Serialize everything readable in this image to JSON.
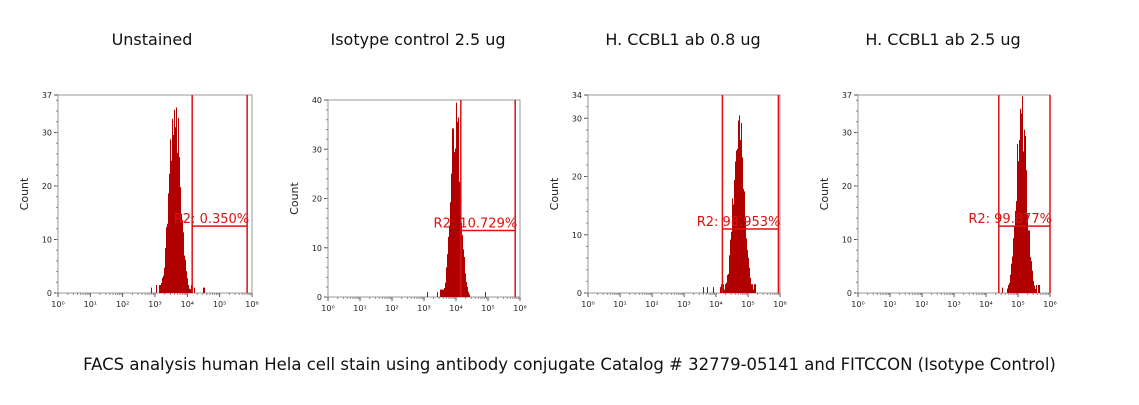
{
  "caption": "FACS analysis human Hela cell stain using antibody conjugate Catalog # 32779-05141 and FITCCON (Isotype Control)",
  "colors": {
    "histogram": "#b00000",
    "gate": "#dd1111",
    "axis": "#999999"
  },
  "chart_data": [
    {
      "type": "histogram",
      "title": "Unstained",
      "ylabel": "Count",
      "xscale": "log",
      "xlim": [
        0,
        6
      ],
      "ylim": [
        0,
        37
      ],
      "yticks": [
        0,
        10,
        20,
        30,
        37
      ],
      "xticks": [
        "10⁰",
        "10¹",
        "10²",
        "10³",
        "10⁴",
        "10⁵",
        "10⁶"
      ],
      "peak_log": 3.6,
      "peak_count": 37,
      "spread": 0.17,
      "gate": {
        "label": "R2: 0.350%",
        "from_log": 4.15,
        "to_log": 5.85,
        "y": 12.5
      }
    },
    {
      "type": "histogram",
      "title": "Isotype control 2.5 ug",
      "ylabel": "Count",
      "xscale": "log",
      "xlim": [
        0,
        6
      ],
      "ylim": [
        0,
        40
      ],
      "yticks": [
        0,
        10,
        20,
        30,
        40
      ],
      "xticks": [
        "10⁰",
        "10¹",
        "10²",
        "10³",
        "10⁴",
        "10⁵",
        "10⁶"
      ],
      "peak_log": 3.98,
      "peak_count": 40,
      "spread": 0.15,
      "gate": {
        "label": "R2: 10.729%",
        "from_log": 4.15,
        "to_log": 5.85,
        "y": 13.5
      }
    },
    {
      "type": "histogram",
      "title": "H. CCBL1 ab 0.8 ug",
      "ylabel": "Count",
      "xscale": "log",
      "xlim": [
        0,
        6
      ],
      "ylim": [
        0,
        34
      ],
      "yticks": [
        0,
        10,
        20,
        30,
        34
      ],
      "xticks": [
        "10⁰",
        "10¹",
        "10²",
        "10³",
        "10⁴",
        "10⁵",
        "10⁶"
      ],
      "peak_log": 4.7,
      "peak_count": 34,
      "spread": 0.16,
      "gate": {
        "label": "R2: 98.953%",
        "from_log": 4.2,
        "to_log": 5.95,
        "y": 11
      }
    },
    {
      "type": "histogram",
      "title": "H. CCBL1 ab 2.5 ug",
      "ylabel": "Count",
      "xscale": "log",
      "xlim": [
        0,
        6
      ],
      "ylim": [
        0,
        37
      ],
      "yticks": [
        0,
        10,
        20,
        30,
        37
      ],
      "xticks": [
        "10⁰",
        "10¹",
        "10²",
        "10³",
        "10⁴",
        "10⁵",
        "10⁶"
      ],
      "peak_log": 5.1,
      "peak_count": 37,
      "spread": 0.16,
      "gate": {
        "label": "R2: 99.877%",
        "from_log": 4.4,
        "to_log": 6.0,
        "y": 12.5
      }
    }
  ]
}
